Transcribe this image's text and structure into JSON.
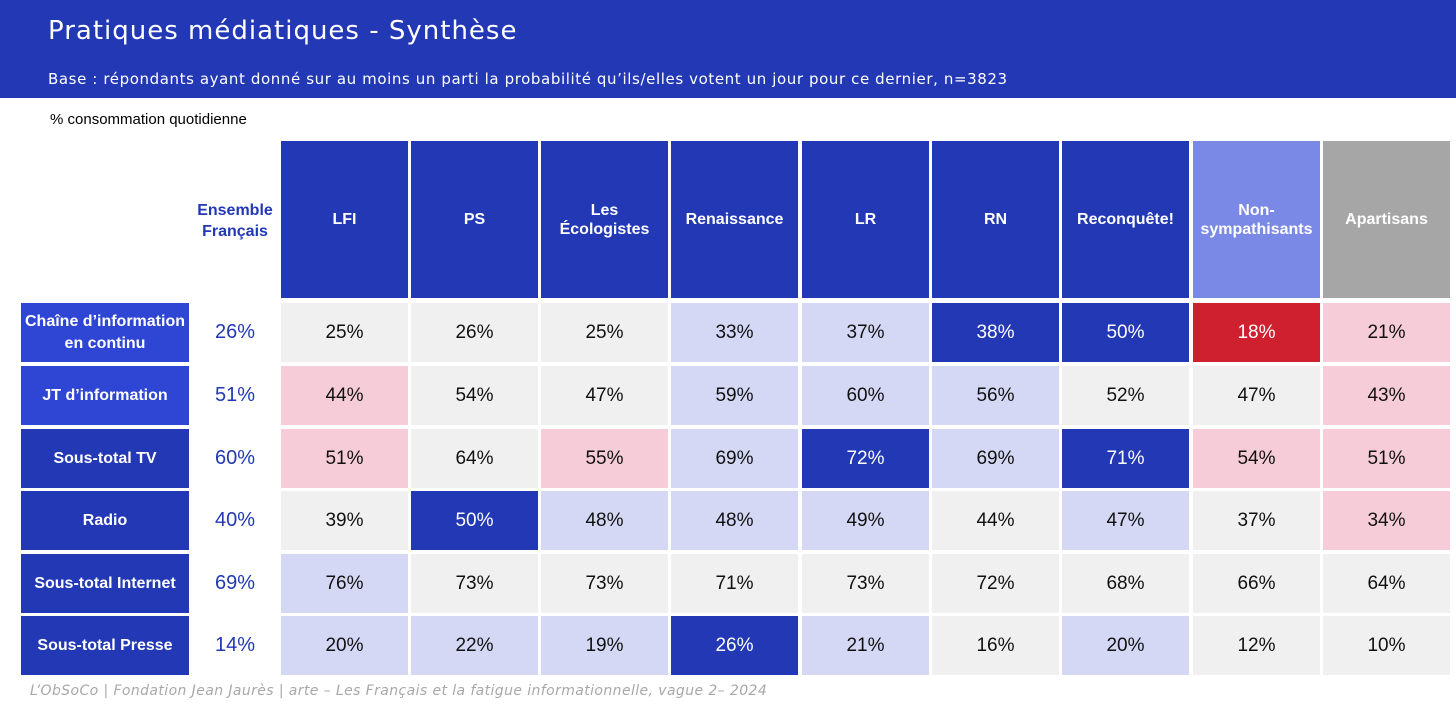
{
  "header": {
    "title": "Pratiques médiatiques - Synthèse",
    "subtitle": "Base : répondants ayant donné sur au moins un parti la probabilité qu’ils/elles votent un jour pour ce dernier, n=3823"
  },
  "measure_label": "% consommation quotidienne",
  "source": "L’ObSoCo | Fondation Jean Jaurès | arte – Les Français et la fatigue informationnelle, vague 2– 2024",
  "colors": {
    "header_blue": "#2238b5",
    "dark_blue": "#2238b5",
    "light_blue": "#d4d8f5",
    "light_gray": "#f0f0f0",
    "pink": "#f5ccd7",
    "red": "#cf2030",
    "nonsymp_head": "#7b89e6",
    "apartisans_head": "#a6a6a6",
    "row_head_blue": "#2f45d4"
  },
  "chart_data": {
    "type": "table",
    "title": "Pratiques médiatiques - Synthèse",
    "unit": "% consommation quotidienne",
    "ensemble_label": "Ensemble Français",
    "columns": [
      "LFI",
      "PS",
      "Les Écologistes",
      "Renaissance",
      "LR",
      "RN",
      "Reconquête!",
      "Non-sympathisants",
      "Apartisans"
    ],
    "column_styles": [
      "dark",
      "dark",
      "dark",
      "dark",
      "dark",
      "dark",
      "dark",
      "nonsymp",
      "apartisans"
    ],
    "rows": [
      {
        "label": "Chaîne d’information en continu",
        "ensemble": "26%",
        "values": [
          "25%",
          "26%",
          "25%",
          "33%",
          "37%",
          "38%",
          "50%",
          "18%",
          "21%"
        ],
        "styles": [
          "gray",
          "gray",
          "gray",
          "lightblue",
          "lightblue",
          "dark",
          "dark",
          "red",
          "pink"
        ]
      },
      {
        "label": "JT d’information",
        "ensemble": "51%",
        "values": [
          "44%",
          "54%",
          "47%",
          "59%",
          "60%",
          "56%",
          "52%",
          "47%",
          "43%"
        ],
        "styles": [
          "pink",
          "gray",
          "gray",
          "lightblue",
          "lightblue",
          "lightblue",
          "gray",
          "gray",
          "pink"
        ]
      },
      {
        "label": "Sous-total TV",
        "ensemble": "60%",
        "values": [
          "51%",
          "64%",
          "55%",
          "69%",
          "72%",
          "69%",
          "71%",
          "54%",
          "51%"
        ],
        "styles": [
          "pink",
          "gray",
          "pink",
          "lightblue",
          "dark",
          "lightblue",
          "dark",
          "pink",
          "pink"
        ]
      },
      {
        "label": "Radio",
        "ensemble": "40%",
        "values": [
          "39%",
          "50%",
          "48%",
          "48%",
          "49%",
          "44%",
          "47%",
          "37%",
          "34%"
        ],
        "styles": [
          "gray",
          "dark",
          "lightblue",
          "lightblue",
          "lightblue",
          "gray",
          "lightblue",
          "gray",
          "pink"
        ]
      },
      {
        "label": "Sous-total Internet",
        "ensemble": "69%",
        "values": [
          "76%",
          "73%",
          "73%",
          "71%",
          "73%",
          "72%",
          "68%",
          "66%",
          "64%"
        ],
        "styles": [
          "lightblue",
          "gray",
          "gray",
          "gray",
          "gray",
          "gray",
          "gray",
          "gray",
          "gray"
        ]
      },
      {
        "label": "Sous-total Presse",
        "ensemble": "14%",
        "values": [
          "20%",
          "22%",
          "19%",
          "26%",
          "21%",
          "16%",
          "20%",
          "12%",
          "10%"
        ],
        "styles": [
          "lightblue",
          "lightblue",
          "lightblue",
          "dark",
          "lightblue",
          "gray",
          "lightblue",
          "gray",
          "gray"
        ]
      }
    ]
  }
}
